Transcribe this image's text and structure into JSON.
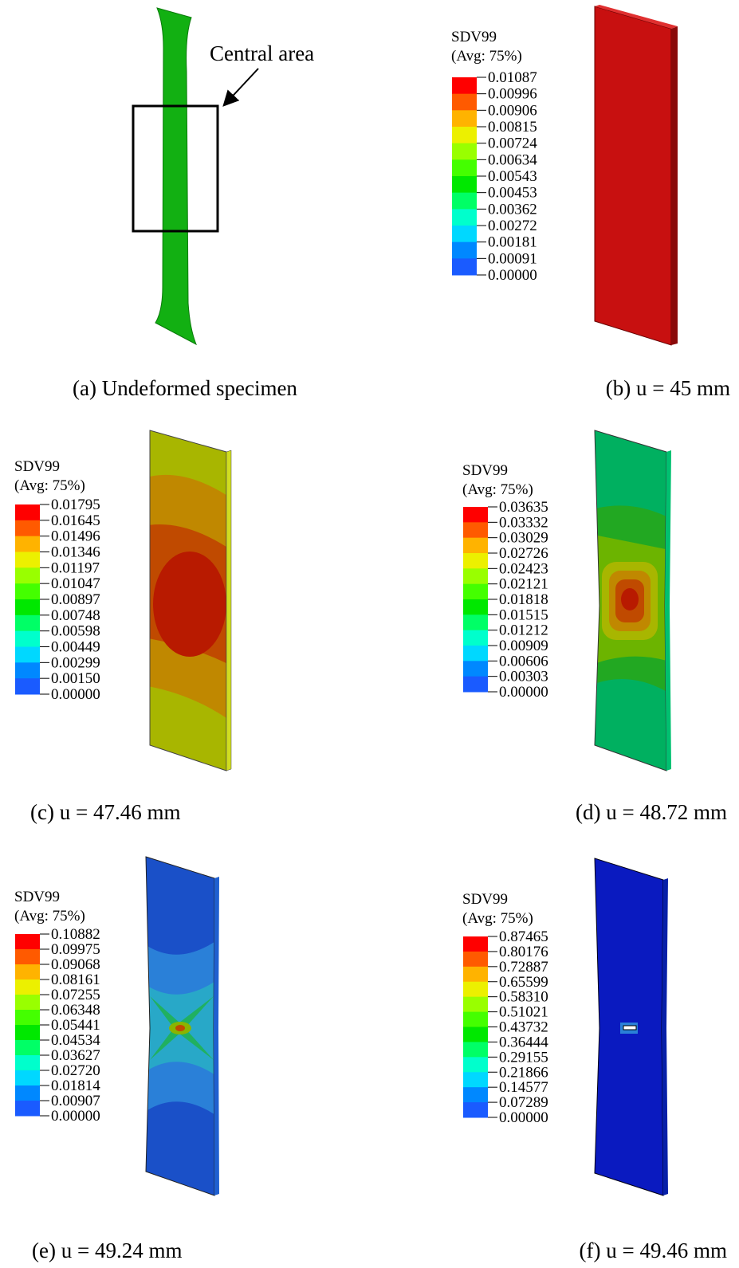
{
  "panels": [
    {
      "caption": "(a) Undeformed specimen",
      "annotation": "Central area"
    },
    {
      "caption": "(b) u = 45 mm",
      "legend": {
        "title": "SDV99",
        "subtitle": "(Avg: 75%)",
        "values": [
          "0.01087",
          "0.00996",
          "0.00906",
          "0.00815",
          "0.00724",
          "0.00634",
          "0.00543",
          "0.00453",
          "0.00362",
          "0.00272",
          "0.00181",
          "0.00091",
          "0.00000"
        ]
      }
    },
    {
      "caption": "(c) u = 47.46 mm",
      "legend": {
        "title": "SDV99",
        "subtitle": "(Avg: 75%)",
        "values": [
          "0.01795",
          "0.01645",
          "0.01496",
          "0.01346",
          "0.01197",
          "0.01047",
          "0.00897",
          "0.00748",
          "0.00598",
          "0.00449",
          "0.00299",
          "0.00150",
          "0.00000"
        ]
      }
    },
    {
      "caption": "(d) u = 48.72 mm",
      "legend": {
        "title": "SDV99",
        "subtitle": "(Avg: 75%)",
        "values": [
          "0.03635",
          "0.03332",
          "0.03029",
          "0.02726",
          "0.02423",
          "0.02121",
          "0.01818",
          "0.01515",
          "0.01212",
          "0.00909",
          "0.00606",
          "0.00303",
          "0.00000"
        ]
      }
    },
    {
      "caption": "(e) u = 49.24 mm",
      "legend": {
        "title": "SDV99",
        "subtitle": "(Avg: 75%)",
        "values": [
          "0.10882",
          "0.09975",
          "0.09068",
          "0.08161",
          "0.07255",
          "0.06348",
          "0.05441",
          "0.04534",
          "0.03627",
          "0.02720",
          "0.01814",
          "0.00907",
          "0.00000"
        ]
      }
    },
    {
      "caption": "(f) u = 49.46 mm",
      "legend": {
        "title": "SDV99",
        "subtitle": "(Avg: 75%)",
        "values": [
          "0.87465",
          "0.80176",
          "0.72887",
          "0.65599",
          "0.58310",
          "0.51021",
          "0.43732",
          "0.36444",
          "0.29155",
          "0.21866",
          "0.14577",
          "0.07289",
          "0.00000"
        ]
      }
    }
  ]
}
